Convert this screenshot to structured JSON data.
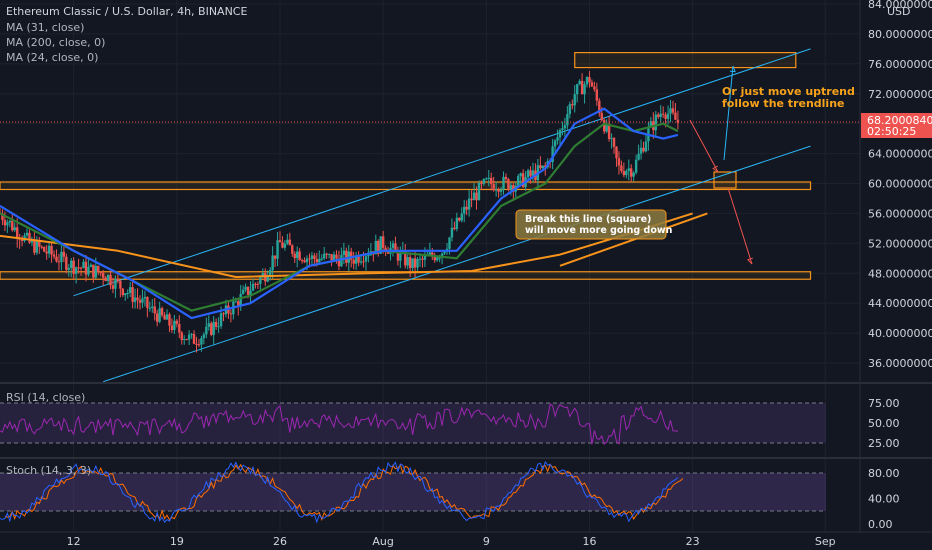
{
  "header": {
    "symbol_line": "Ethereum Classic / U.S. Dollar, 4h, BINANCE",
    "ma_labels": [
      "MA (31, close)",
      "MA (200, close, 0)",
      "MA (24, close, 0)"
    ],
    "currency": "USD"
  },
  "price_axis": {
    "ticks": [
      "84.0000000",
      "80.0000000",
      "76.0000000",
      "72.0000000",
      "68.0000000",
      "64.0000000",
      "60.0000000",
      "56.0000000",
      "52.0000000",
      "48.0000000",
      "44.0000000",
      "40.0000000",
      "36.0000000"
    ],
    "current_price": "68.2000840",
    "countdown": "02:50:25"
  },
  "rsi": {
    "label": "RSI (14, close)",
    "ticks": [
      "75.00",
      "50.00",
      "25.00"
    ]
  },
  "stoch": {
    "label": "Stoch (14, 3, 3)",
    "ticks": [
      "80.00",
      "40.00",
      "0.00"
    ]
  },
  "time_axis": {
    "ticks": [
      "12",
      "19",
      "26",
      "Aug",
      "9",
      "16",
      "23",
      "Sep"
    ]
  },
  "annotations": {
    "uptrend_line1": "Or just move uptrend",
    "uptrend_line2": "follow the trendline",
    "break_line1": "Break this line (square)",
    "break_line2": "will move more going down"
  },
  "colors": {
    "background": "#131722",
    "up": "#26a69a",
    "down": "#ef5350",
    "ma31": "#2962ff",
    "ma200": "#f7931a",
    "ma24": "#2e7d32",
    "channel": "#29b6f6",
    "box": "#f7931a",
    "rsi": "#9c27b0",
    "stoch_k": "#2962ff",
    "stoch_d": "#ff6d00"
  },
  "chart_data": {
    "type": "candlestick",
    "title": "Ethereum Classic / U.S. Dollar, 4h, BINANCE",
    "x_range": [
      "2021-07-07",
      "2021-09-02"
    ],
    "ylim": [
      33,
      85
    ],
    "close_path": [
      {
        "date": "2021-07-07",
        "close": 56
      },
      {
        "date": "2021-07-09",
        "close": 52
      },
      {
        "date": "2021-07-12",
        "close": 49
      },
      {
        "date": "2021-07-14",
        "close": 48
      },
      {
        "date": "2021-07-16",
        "close": 45
      },
      {
        "date": "2021-07-18",
        "close": 42
      },
      {
        "date": "2021-07-20",
        "close": 39
      },
      {
        "date": "2021-07-21",
        "close": 40
      },
      {
        "date": "2021-07-23",
        "close": 44
      },
      {
        "date": "2021-07-25",
        "close": 48
      },
      {
        "date": "2021-07-26",
        "close": 52
      },
      {
        "date": "2021-07-28",
        "close": 50
      },
      {
        "date": "2021-07-31",
        "close": 50
      },
      {
        "date": "2021-08-02",
        "close": 52
      },
      {
        "date": "2021-08-04",
        "close": 49
      },
      {
        "date": "2021-08-06",
        "close": 51
      },
      {
        "date": "2021-08-08",
        "close": 58
      },
      {
        "date": "2021-08-09",
        "close": 60
      },
      {
        "date": "2021-08-11",
        "close": 60
      },
      {
        "date": "2021-08-13",
        "close": 62
      },
      {
        "date": "2021-08-15",
        "close": 72
      },
      {
        "date": "2021-08-16",
        "close": 74
      },
      {
        "date": "2021-08-17",
        "close": 68
      },
      {
        "date": "2021-08-18",
        "close": 62
      },
      {
        "date": "2021-08-19",
        "close": 62
      },
      {
        "date": "2021-08-20",
        "close": 67
      },
      {
        "date": "2021-08-21",
        "close": 70
      },
      {
        "date": "2021-08-22",
        "close": 68.2
      }
    ],
    "indicators": {
      "ma31": [
        {
          "date": "2021-07-07",
          "value": 57
        },
        {
          "date": "2021-07-12",
          "value": 51
        },
        {
          "date": "2021-07-16",
          "value": 47
        },
        {
          "date": "2021-07-20",
          "value": 42
        },
        {
          "date": "2021-07-24",
          "value": 44
        },
        {
          "date": "2021-07-28",
          "value": 49
        },
        {
          "date": "2021-08-02",
          "value": 51
        },
        {
          "date": "2021-08-07",
          "value": 51
        },
        {
          "date": "2021-08-10",
          "value": 58
        },
        {
          "date": "2021-08-13",
          "value": 62
        },
        {
          "date": "2021-08-15",
          "value": 68
        },
        {
          "date": "2021-08-17",
          "value": 70
        },
        {
          "date": "2021-08-19",
          "value": 67
        },
        {
          "date": "2021-08-21",
          "value": 66
        },
        {
          "date": "2021-08-22",
          "value": 66.5
        }
      ],
      "ma200": [
        {
          "date": "2021-07-07",
          "value": 53
        },
        {
          "date": "2021-07-15",
          "value": 51
        },
        {
          "date": "2021-07-23",
          "value": 47.5
        },
        {
          "date": "2021-08-01",
          "value": 48
        },
        {
          "date": "2021-08-08",
          "value": 48.3
        },
        {
          "date": "2021-08-14",
          "value": 50.5
        },
        {
          "date": "2021-08-19",
          "value": 53.5
        },
        {
          "date": "2021-08-23",
          "value": 56
        }
      ],
      "ma24": [
        {
          "date": "2021-07-07",
          "value": 56
        },
        {
          "date": "2021-07-12",
          "value": 51
        },
        {
          "date": "2021-07-16",
          "value": 47
        },
        {
          "date": "2021-07-20",
          "value": 43
        },
        {
          "date": "2021-07-24",
          "value": 45
        },
        {
          "date": "2021-07-28",
          "value": 49
        },
        {
          "date": "2021-08-02",
          "value": 51
        },
        {
          "date": "2021-08-07",
          "value": 50
        },
        {
          "date": "2021-08-10",
          "value": 57
        },
        {
          "date": "2021-08-13",
          "value": 60
        },
        {
          "date": "2021-08-15",
          "value": 65
        },
        {
          "date": "2021-08-17",
          "value": 68
        },
        {
          "date": "2021-08-19",
          "value": 67
        },
        {
          "date": "2021-08-21",
          "value": 68
        },
        {
          "date": "2021-08-22",
          "value": 67
        }
      ]
    },
    "zones": [
      {
        "name": "resistance box",
        "from": "2021-08-15",
        "to": "2021-08-30",
        "low": 75.5,
        "high": 77.5
      },
      {
        "name": "support band",
        "from": "2021-07-07",
        "to": "2021-08-31",
        "low": 59.2,
        "high": 60.2
      },
      {
        "name": "support band low",
        "from": "2021-07-07",
        "to": "2021-08-31",
        "low": 47.2,
        "high": 48.2
      }
    ],
    "rsi_range": [
      0,
      100
    ],
    "stoch_range": [
      0,
      100
    ]
  }
}
